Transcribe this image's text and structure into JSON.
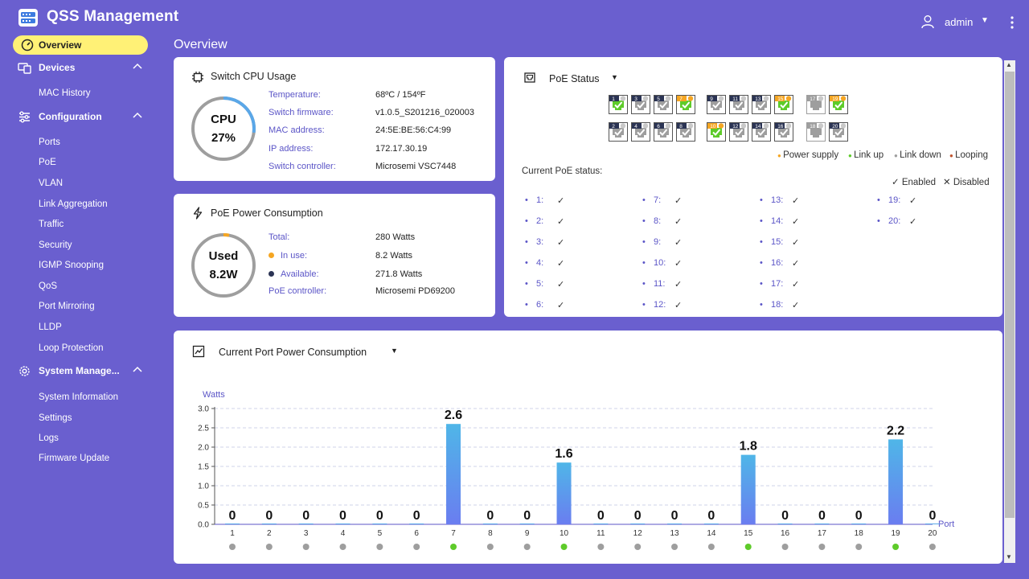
{
  "app": {
    "title": "QSS Management",
    "user": "admin"
  },
  "page_title": "Overview",
  "sidebar": {
    "overview": "Overview",
    "devices": {
      "label": "Devices",
      "items": [
        "MAC History"
      ]
    },
    "configuration": {
      "label": "Configuration",
      "items": [
        "Ports",
        "PoE",
        "VLAN",
        "Link Aggregation",
        "Traffic",
        "Security",
        "IGMP Snooping",
        "QoS",
        "Port Mirroring",
        "LLDP",
        "Loop Protection"
      ]
    },
    "system": {
      "label": "System Manage...",
      "items": [
        "System Information",
        "Settings",
        "Logs",
        "Firmware Update"
      ]
    }
  },
  "cpu_card": {
    "title": "Switch  CPU  Usage",
    "ring_line1": "CPU",
    "ring_line2": "27%",
    "usage_percent": 27,
    "fields": [
      {
        "label": "Temperature:",
        "value": "68ºC  /  154ºF"
      },
      {
        "label": "Switch  firmware:",
        "value": "v1.0.5_S201216_020003"
      },
      {
        "label": "MAC  address:",
        "value": "24:5E:BE:56:C4:99"
      },
      {
        "label": "IP  address:",
        "value": "172.17.30.19"
      },
      {
        "label": "Switch  controller:",
        "value": "Microsemi  VSC7448"
      }
    ]
  },
  "poe_power_card": {
    "title": "PoE  Power  Consumption",
    "ring_line1": "Used",
    "ring_line2": "8.2W",
    "used_fraction": 0.029,
    "fields": [
      {
        "label": "Total:",
        "value": "280  Watts",
        "dot": ""
      },
      {
        "label": "In  use:",
        "value": "8.2  Watts",
        "dot": "#f5a623"
      },
      {
        "label": "Available:",
        "value": "271.8  Watts",
        "dot": "#2b3454"
      },
      {
        "label": "PoE  controller:",
        "value": "Microsemi  PD69200",
        "dot": ""
      }
    ]
  },
  "poe_status": {
    "title": "PoE  Status",
    "ports": [
      {
        "n": "1",
        "state": "up",
        "badge": "#2b3454"
      },
      {
        "n": "2",
        "state": "down",
        "badge": "#2b3454"
      },
      {
        "n": "3",
        "state": "down",
        "badge": "#2b3454"
      },
      {
        "n": "4",
        "state": "down",
        "badge": "#2b3454"
      },
      {
        "n": "5",
        "state": "down",
        "badge": "#2b3454"
      },
      {
        "n": "6",
        "state": "down",
        "badge": "#2b3454"
      },
      {
        "n": "7",
        "state": "up",
        "badge": "#f5a623"
      },
      {
        "n": "8",
        "state": "down",
        "badge": "#2b3454"
      },
      {
        "n": "9",
        "state": "down",
        "badge": "#2b3454"
      },
      {
        "n": "10",
        "state": "up",
        "badge": "#f5a623"
      },
      {
        "n": "11",
        "state": "down",
        "badge": "#2b3454"
      },
      {
        "n": "12",
        "state": "down",
        "badge": "#2b3454"
      },
      {
        "n": "13",
        "state": "down",
        "badge": "#2b3454"
      },
      {
        "n": "14",
        "state": "down",
        "badge": "#2b3454"
      },
      {
        "n": "15",
        "state": "up",
        "badge": "#f5a623"
      },
      {
        "n": "16",
        "state": "down",
        "badge": "#2b3454"
      },
      {
        "n": "17",
        "state": "off",
        "badge": "#9e9e9e"
      },
      {
        "n": "18",
        "state": "off",
        "badge": "#9e9e9e"
      },
      {
        "n": "19",
        "state": "up",
        "badge": "#f5a623"
      },
      {
        "n": "20",
        "state": "down",
        "badge": "#2b3454"
      }
    ],
    "legend": [
      {
        "label": "Power  supply",
        "color": "#f5a623"
      },
      {
        "label": "Link  up",
        "color": "#5ecb2a"
      },
      {
        "label": "Link  down",
        "color": "#9e9e9e"
      },
      {
        "label": "Looping",
        "color": "#c0542e"
      }
    ],
    "current_label": "Current  PoE  status:",
    "enabled_label": "Enabled",
    "disabled_label": "Disabled",
    "status_list": [
      "1:",
      "2:",
      "3:",
      "4:",
      "5:",
      "6:",
      "7:",
      "8:",
      "9:",
      "10:",
      "11:",
      "12:",
      "13:",
      "14:",
      "15:",
      "16:",
      "17:",
      "18:",
      "19:",
      "20:"
    ]
  },
  "chart_card": {
    "title": "Current  Port  Power  Consumption"
  },
  "chart_data": {
    "type": "bar",
    "ylabel": "Watts",
    "xlabel": "Port",
    "ylim": [
      0,
      3.0
    ],
    "yticks": [
      "0.0",
      "0.5",
      "1.0",
      "1.5",
      "2.0",
      "2.5",
      "3.0"
    ],
    "categories": [
      "1",
      "2",
      "3",
      "4",
      "5",
      "6",
      "7",
      "8",
      "9",
      "10",
      "11",
      "12",
      "13",
      "14",
      "15",
      "16",
      "17",
      "18",
      "19",
      "20"
    ],
    "values": [
      0,
      0,
      0,
      0,
      0,
      0,
      2.6,
      0,
      0,
      1.6,
      0,
      0,
      0,
      0,
      1.8,
      0,
      0,
      0,
      2.2,
      0
    ],
    "labels": [
      "0",
      "0",
      "0",
      "0",
      "0",
      "0",
      "2.6",
      "0",
      "0",
      "1.6",
      "0",
      "0",
      "0",
      "0",
      "1.8",
      "0",
      "0",
      "0",
      "2.2",
      "0"
    ],
    "link_status": [
      "down",
      "down",
      "down",
      "down",
      "down",
      "down",
      "up",
      "down",
      "down",
      "up",
      "down",
      "down",
      "down",
      "down",
      "up",
      "down",
      "down",
      "down",
      "up",
      "down"
    ],
    "bar_color": "#5aa7e8",
    "grid": true
  }
}
